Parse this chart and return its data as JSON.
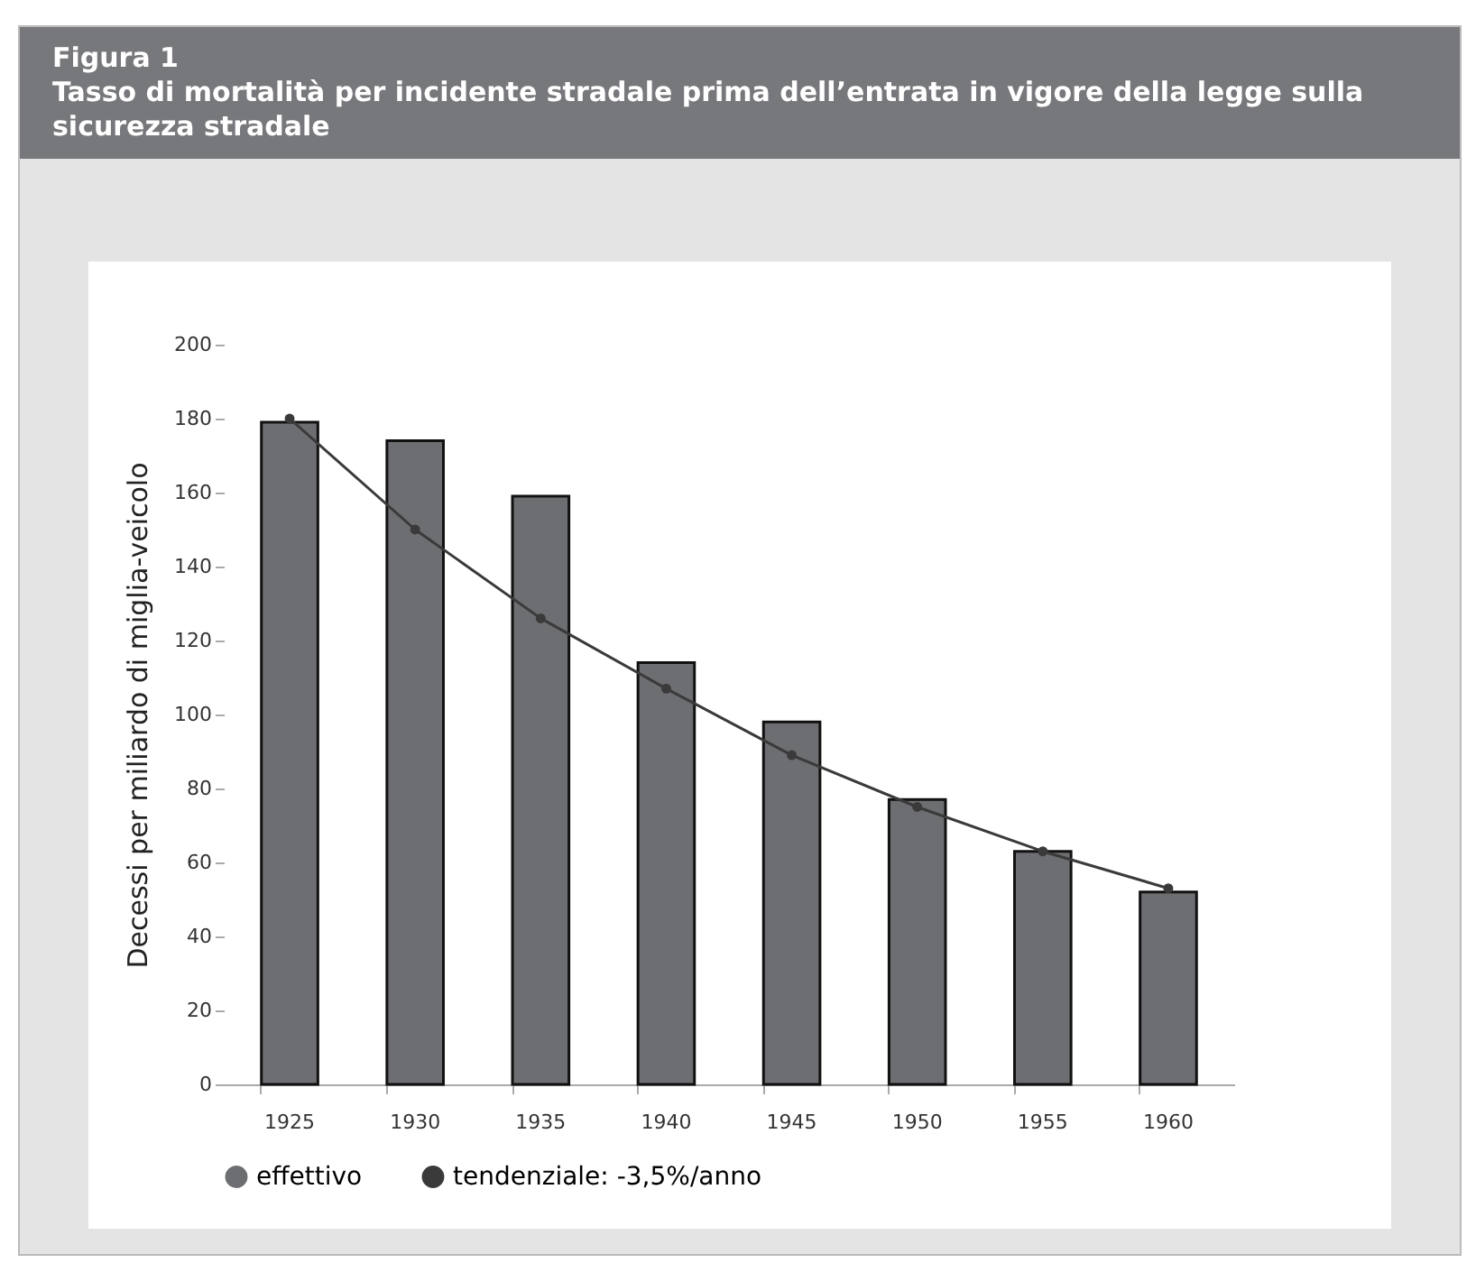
{
  "chart_data": {
    "type": "bar",
    "title": "Figura 1",
    "subtitle": "Tasso di mortalità per incidente stradale prima dell’entrata in vigore della legge sulla sicurezza stradale",
    "ylabel": "Decessi per miliardo di miglia-veicolo",
    "categories": [
      "1925",
      "1930",
      "1935",
      "1940",
      "1945",
      "1950",
      "1955",
      "1960"
    ],
    "series": [
      {
        "name": "effettivo",
        "color": "#6d6e71",
        "values": [
          179,
          174,
          159,
          114,
          98,
          77,
          63,
          52
        ]
      },
      {
        "name": "tendenziale: -3,5%/anno",
        "type": "line",
        "color": "#3a3a3a",
        "marker": "circle",
        "values": [
          180,
          150,
          126,
          107,
          89,
          75,
          63,
          53
        ]
      }
    ],
    "ylim": [
      0,
      200
    ],
    "yticks": [
      0,
      20,
      40,
      60,
      80,
      100,
      120,
      140,
      160,
      180,
      200
    ],
    "grid": false,
    "legend": "bottom"
  }
}
